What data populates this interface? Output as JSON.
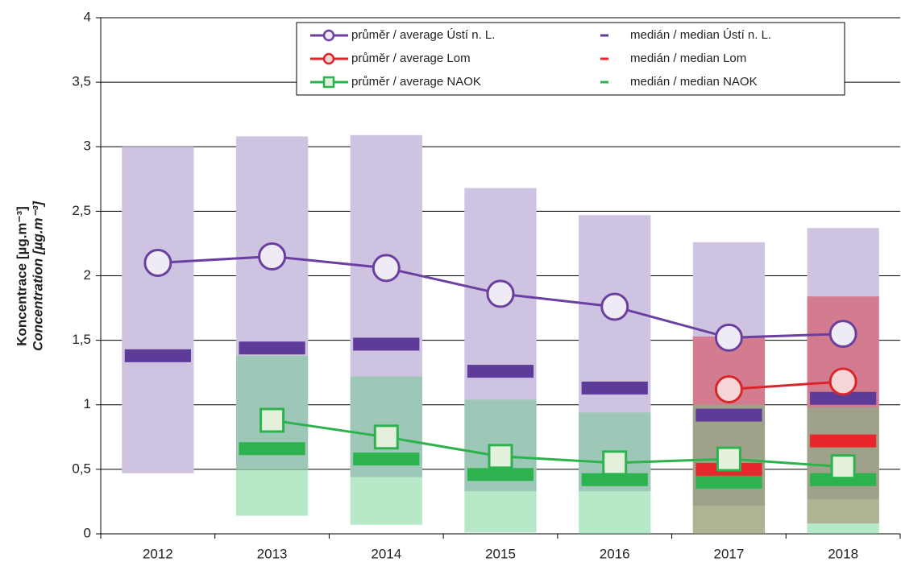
{
  "chart_data": {
    "type": "range-line",
    "y_label": [
      "Koncentrace [µg.m⁻³]",
      "Concentration [µg.m⁻³]"
    ],
    "categories": [
      "2012",
      "2013",
      "2014",
      "2015",
      "2016",
      "2017",
      "2018"
    ],
    "ylim": [
      0,
      4
    ],
    "yticks": [
      0,
      {
        "value": 0.5,
        "label": "0,5"
      },
      1,
      {
        "value": 1.5,
        "label": "1,5"
      },
      2,
      {
        "value": 2.5,
        "label": "2,5"
      },
      3,
      {
        "value": 3.5,
        "label": "3,5"
      },
      4
    ],
    "grid": true,
    "ranges": [
      {
        "color": "#cfc3e2",
        "min": [
          0.47,
          0.5,
          0.44,
          0.33,
          0.33,
          0.22,
          0.27
        ],
        "max": [
          3.0,
          3.08,
          3.09,
          2.68,
          2.47,
          2.26,
          2.37
        ]
      },
      {
        "color": "#d9262b",
        "min": [
          null,
          null,
          null,
          null,
          null,
          0,
          0.08
        ],
        "max": [
          null,
          null,
          null,
          null,
          null,
          1.53,
          1.84
        ]
      },
      {
        "color": "#5fcf85",
        "min": [
          null,
          0.14,
          0.07,
          0.01,
          0,
          0,
          0
        ],
        "max": [
          null,
          1.38,
          1.22,
          1.04,
          0.94,
          1.0,
          0.98
        ]
      }
    ],
    "series": [
      {
        "name": "průměr / average Ústí n. L.",
        "color": "#6a3fa0",
        "marker": "circle",
        "fill": "#efebf5",
        "values": [
          2.1,
          2.15,
          2.06,
          1.86,
          1.76,
          1.52,
          1.55
        ]
      },
      {
        "name": "průměr / average Lom",
        "color": "#d9262b",
        "marker": "circle",
        "fill": "#f5d5d5",
        "values": [
          null,
          null,
          null,
          null,
          null,
          1.12,
          1.18
        ]
      },
      {
        "name": "průměr / average NAOK",
        "color": "#2db34e",
        "marker": "square",
        "fill": "#e2f0dc",
        "values": [
          null,
          0.88,
          0.75,
          0.6,
          0.55,
          0.58,
          0.52
        ]
      }
    ],
    "medians": [
      {
        "name": "medián / median Ústí n. L.",
        "color": "#5e3a99",
        "values": [
          1.38,
          1.44,
          1.47,
          1.26,
          1.13,
          0.92,
          1.05
        ]
      },
      {
        "name": "medián / median Lom",
        "color": "#e8262b",
        "values": [
          null,
          null,
          null,
          null,
          null,
          0.5,
          0.72
        ]
      },
      {
        "name": "medián / median NAOK",
        "color": "#2db34e",
        "values": [
          null,
          0.66,
          0.58,
          0.46,
          0.42,
          0.4,
          0.42
        ]
      }
    ]
  }
}
